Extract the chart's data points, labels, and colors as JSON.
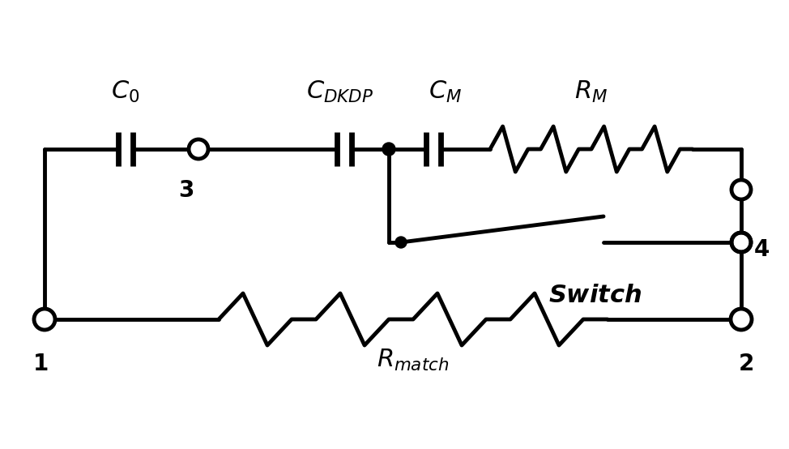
{
  "bg_color": "#ffffff",
  "line_color": "#000000",
  "line_width": 3.5,
  "fig_width": 9.74,
  "fig_height": 5.54,
  "dpi": 100
}
